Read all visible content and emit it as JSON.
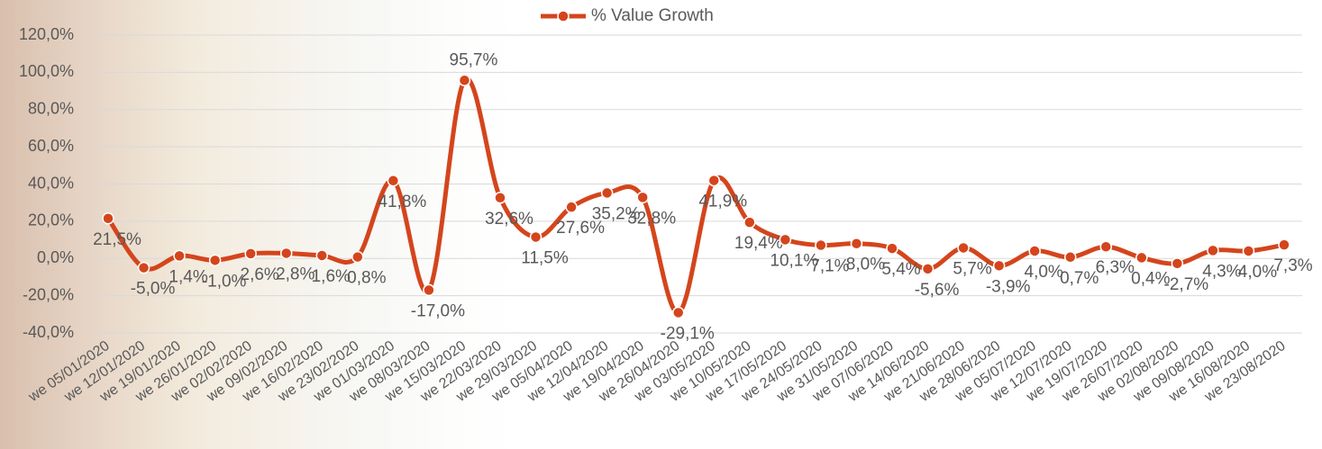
{
  "chart_data": {
    "type": "line",
    "categories": [
      "we 05/01/2020",
      "we 12/01/2020",
      "we 19/01/2020",
      "we 26/01/2020",
      "we 02/02/2020",
      "we 09/02/2020",
      "we 16/02/2020",
      "we 23/02/2020",
      "we 01/03/2020",
      "we 08/03/2020",
      "we 15/03/2020",
      "we 22/03/2020",
      "we 29/03/2020",
      "we 05/04/2020",
      "we 12/04/2020",
      "we 19/04/2020",
      "we 26/04/2020",
      "we 03/05/2020",
      "we 10/05/2020",
      "we 17/05/2020",
      "we 24/05/2020",
      "we 31/05/2020",
      "we 07/06/2020",
      "we 14/06/2020",
      "we 21/06/2020",
      "we 28/06/2020",
      "we 05/07/2020",
      "we 12/07/2020",
      "we 19/07/2020",
      "we 26/07/2020",
      "we 02/08/2020",
      "we 09/08/2020",
      "we 16/08/2020",
      "we 23/08/2020"
    ],
    "series": [
      {
        "name": "% Value Growth",
        "color": "#d4451c",
        "values": [
          21.5,
          -5.0,
          1.4,
          -1.0,
          2.6,
          2.8,
          1.6,
          0.8,
          41.8,
          -17.0,
          95.7,
          32.6,
          11.5,
          27.6,
          35.2,
          32.8,
          -29.1,
          41.9,
          19.4,
          10.1,
          7.1,
          8.0,
          5.4,
          -5.6,
          5.7,
          -3.9,
          4.0,
          0.7,
          6.3,
          0.4,
          -2.7,
          4.3,
          4.0,
          7.3
        ],
        "value_labels": [
          "21,5%",
          "-5,0%",
          "1,4%",
          "-1,0%",
          "2,6%",
          "2,8%",
          "1,6%",
          "0,8%",
          "41,8%",
          "-17,0%",
          "95,7%",
          "32,6%",
          "11,5%",
          "27,6%",
          "35,2%",
          "32,8%",
          "-29,1%",
          "41,9%",
          "19,4%",
          "10,1%",
          "7,1%",
          "8,0%",
          "5,4%",
          "-5,6%",
          "5,7%",
          "-3,9%",
          "4,0%",
          "0,7%",
          "6,3%",
          "0,4%",
          "-2,7%",
          "4,3%",
          "4,0%",
          "7,3%"
        ]
      }
    ],
    "ylim": [
      -40,
      120
    ],
    "yticks": [
      {
        "value": -40,
        "label": "-40,0%"
      },
      {
        "value": -20,
        "label": "-20,0%"
      },
      {
        "value": 0,
        "label": "0,0%"
      },
      {
        "value": 20,
        "label": "20,0%"
      },
      {
        "value": 40,
        "label": "40,0%"
      },
      {
        "value": 60,
        "label": "60,0%"
      },
      {
        "value": 80,
        "label": "80,0%"
      },
      {
        "value": 100,
        "label": "100,0%"
      },
      {
        "value": 120,
        "label": "120,0%"
      }
    ],
    "grid": true,
    "legend": "top"
  }
}
